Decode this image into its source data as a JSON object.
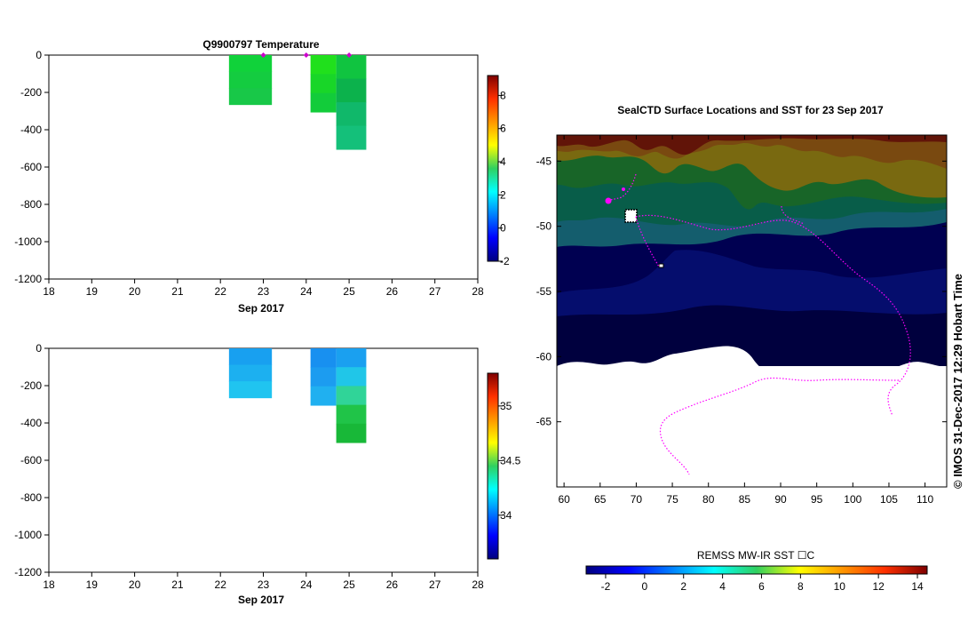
{
  "chart_data": [
    {
      "type": "heatmap",
      "name": "temperature-profile",
      "title": "Q9900797  Temperature",
      "xlabel": "Sep 2017",
      "x_ticks": [
        "18",
        "19",
        "20",
        "21",
        "22",
        "23",
        "24",
        "25",
        "26",
        "27",
        "28"
      ],
      "xlim": [
        18,
        28
      ],
      "ylim": [
        -1200,
        0
      ],
      "y_ticks": [
        "0",
        "-200",
        "-400",
        "-600",
        "-800",
        "-1000",
        "-1200"
      ],
      "profiles": [
        {
          "start": 22.2,
          "end": 23.2,
          "depth": -265,
          "colors": [
            "#10d23a",
            "#14cc40",
            "#18c848"
          ]
        },
        {
          "start": 24.1,
          "end": 24.7,
          "depth": -305,
          "colors": [
            "#20e01c",
            "#18d628",
            "#12cc3a"
          ]
        },
        {
          "start": 24.7,
          "end": 25.4,
          "depth": -505,
          "colors": [
            "#10c440",
            "#0cb24c",
            "#10b86a",
            "#14c07a"
          ]
        }
      ],
      "surface_markers": [
        23,
        24,
        25
      ],
      "colorbar": {
        "min": -2,
        "max": 9.2,
        "ticks": [
          "8",
          "6",
          "4",
          "2",
          "0",
          "-2"
        ]
      }
    },
    {
      "type": "heatmap",
      "name": "salinity-profile",
      "title": "",
      "xlabel": "Sep 2017",
      "x_ticks": [
        "18",
        "19",
        "20",
        "21",
        "22",
        "23",
        "24",
        "25",
        "26",
        "27",
        "28"
      ],
      "xlim": [
        18,
        28
      ],
      "ylim": [
        -1200,
        0
      ],
      "y_ticks": [
        "0",
        "-200",
        "-400",
        "-600",
        "-800",
        "-1000",
        "-1200"
      ],
      "profiles": [
        {
          "start": 22.2,
          "end": 23.2,
          "depth": -265,
          "colors": [
            "#18a0f0",
            "#1cb0f0",
            "#20c4f0"
          ]
        },
        {
          "start": 24.1,
          "end": 24.7,
          "depth": -305,
          "colors": [
            "#1890f0",
            "#1c9cf0",
            "#20b0f0"
          ]
        },
        {
          "start": 24.7,
          "end": 25.4,
          "depth": -505,
          "colors": [
            "#1aa0f0",
            "#20c6e8",
            "#30d498",
            "#20c448",
            "#18b838"
          ]
        }
      ],
      "colorbar": {
        "min": 33.6,
        "max": 35.3,
        "ticks": [
          "35",
          "34.5",
          "34"
        ]
      }
    },
    {
      "type": "heatmap",
      "name": "sst-map",
      "title": "SealCTD Surface Locations and SST for 23 Sep 2017",
      "x_ticks": [
        "60",
        "65",
        "70",
        "75",
        "80",
        "85",
        "90",
        "95",
        "100",
        "105",
        "110"
      ],
      "xlim": [
        59,
        113
      ],
      "ylim": [
        -70,
        -43
      ],
      "y_ticks": [
        "-45",
        "-50",
        "-55",
        "-60",
        "-65"
      ],
      "colorbar": {
        "label": "REMSS MW-IR SST ☐C",
        "min": -3,
        "max": 14.5,
        "ticks": [
          "-2",
          "0",
          "2",
          "4",
          "6",
          "8",
          "10",
          "12",
          "14"
        ]
      }
    }
  ],
  "credit": "©  IMOS 31-Dec-2017 12:29 Hobart Time"
}
